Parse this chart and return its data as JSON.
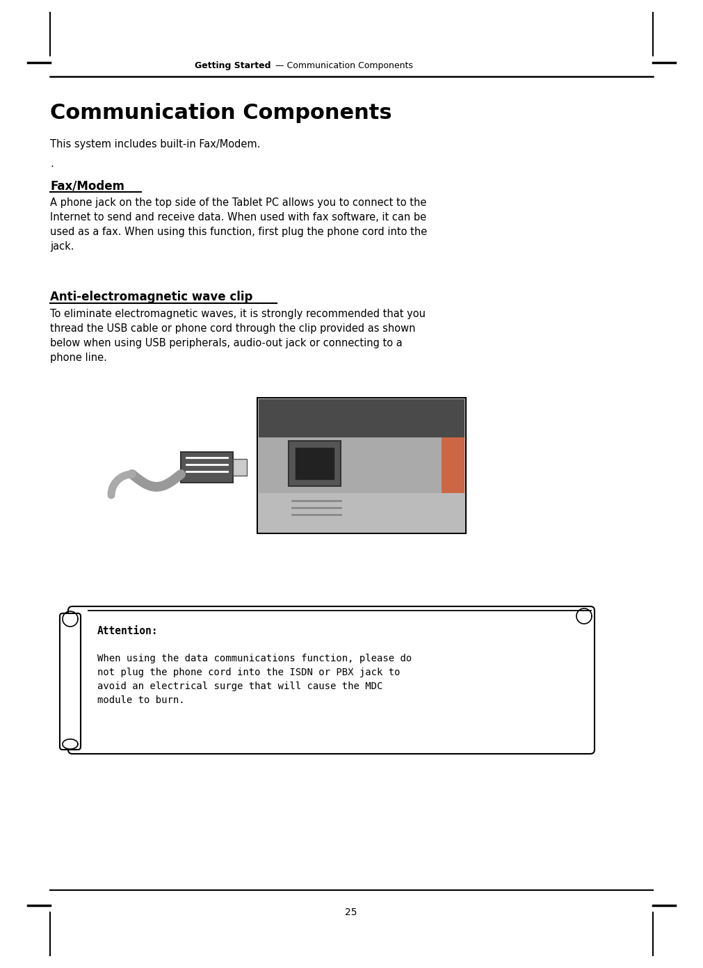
{
  "header_bold": "Getting Started",
  "header_separator": " — ",
  "header_normal": "Communication Components",
  "title": "Communication Components",
  "intro": "This system includes built-in Fax/Modem.",
  "dot": ".",
  "section1_heading": "Fax/Modem",
  "section1_body": "A phone jack on the top side of the Tablet PC allows you to connect to the\nInternet to send and receive data. When used with fax software, it can be\nused as a fax. When using this function, first plug the phone cord into the\njack.",
  "section2_heading": "Anti-electromagnetic wave clip",
  "section2_body": "To eliminate electromagnetic waves, it is strongly recommended that you\nthread the USB cable or phone cord through the clip provided as shown\nbelow when using USB peripherals, audio-out jack or connecting to a\nphone line.",
  "attention_label": "Attention:",
  "attention_body": "When using the data communications function, please do\nnot plug the phone cord into the ISDN or PBX jack to\navoid an electrical surge that will cause the MDC\nmodule to burn.",
  "page_number": "25",
  "bg_color": "#ffffff",
  "text_color": "#000000"
}
